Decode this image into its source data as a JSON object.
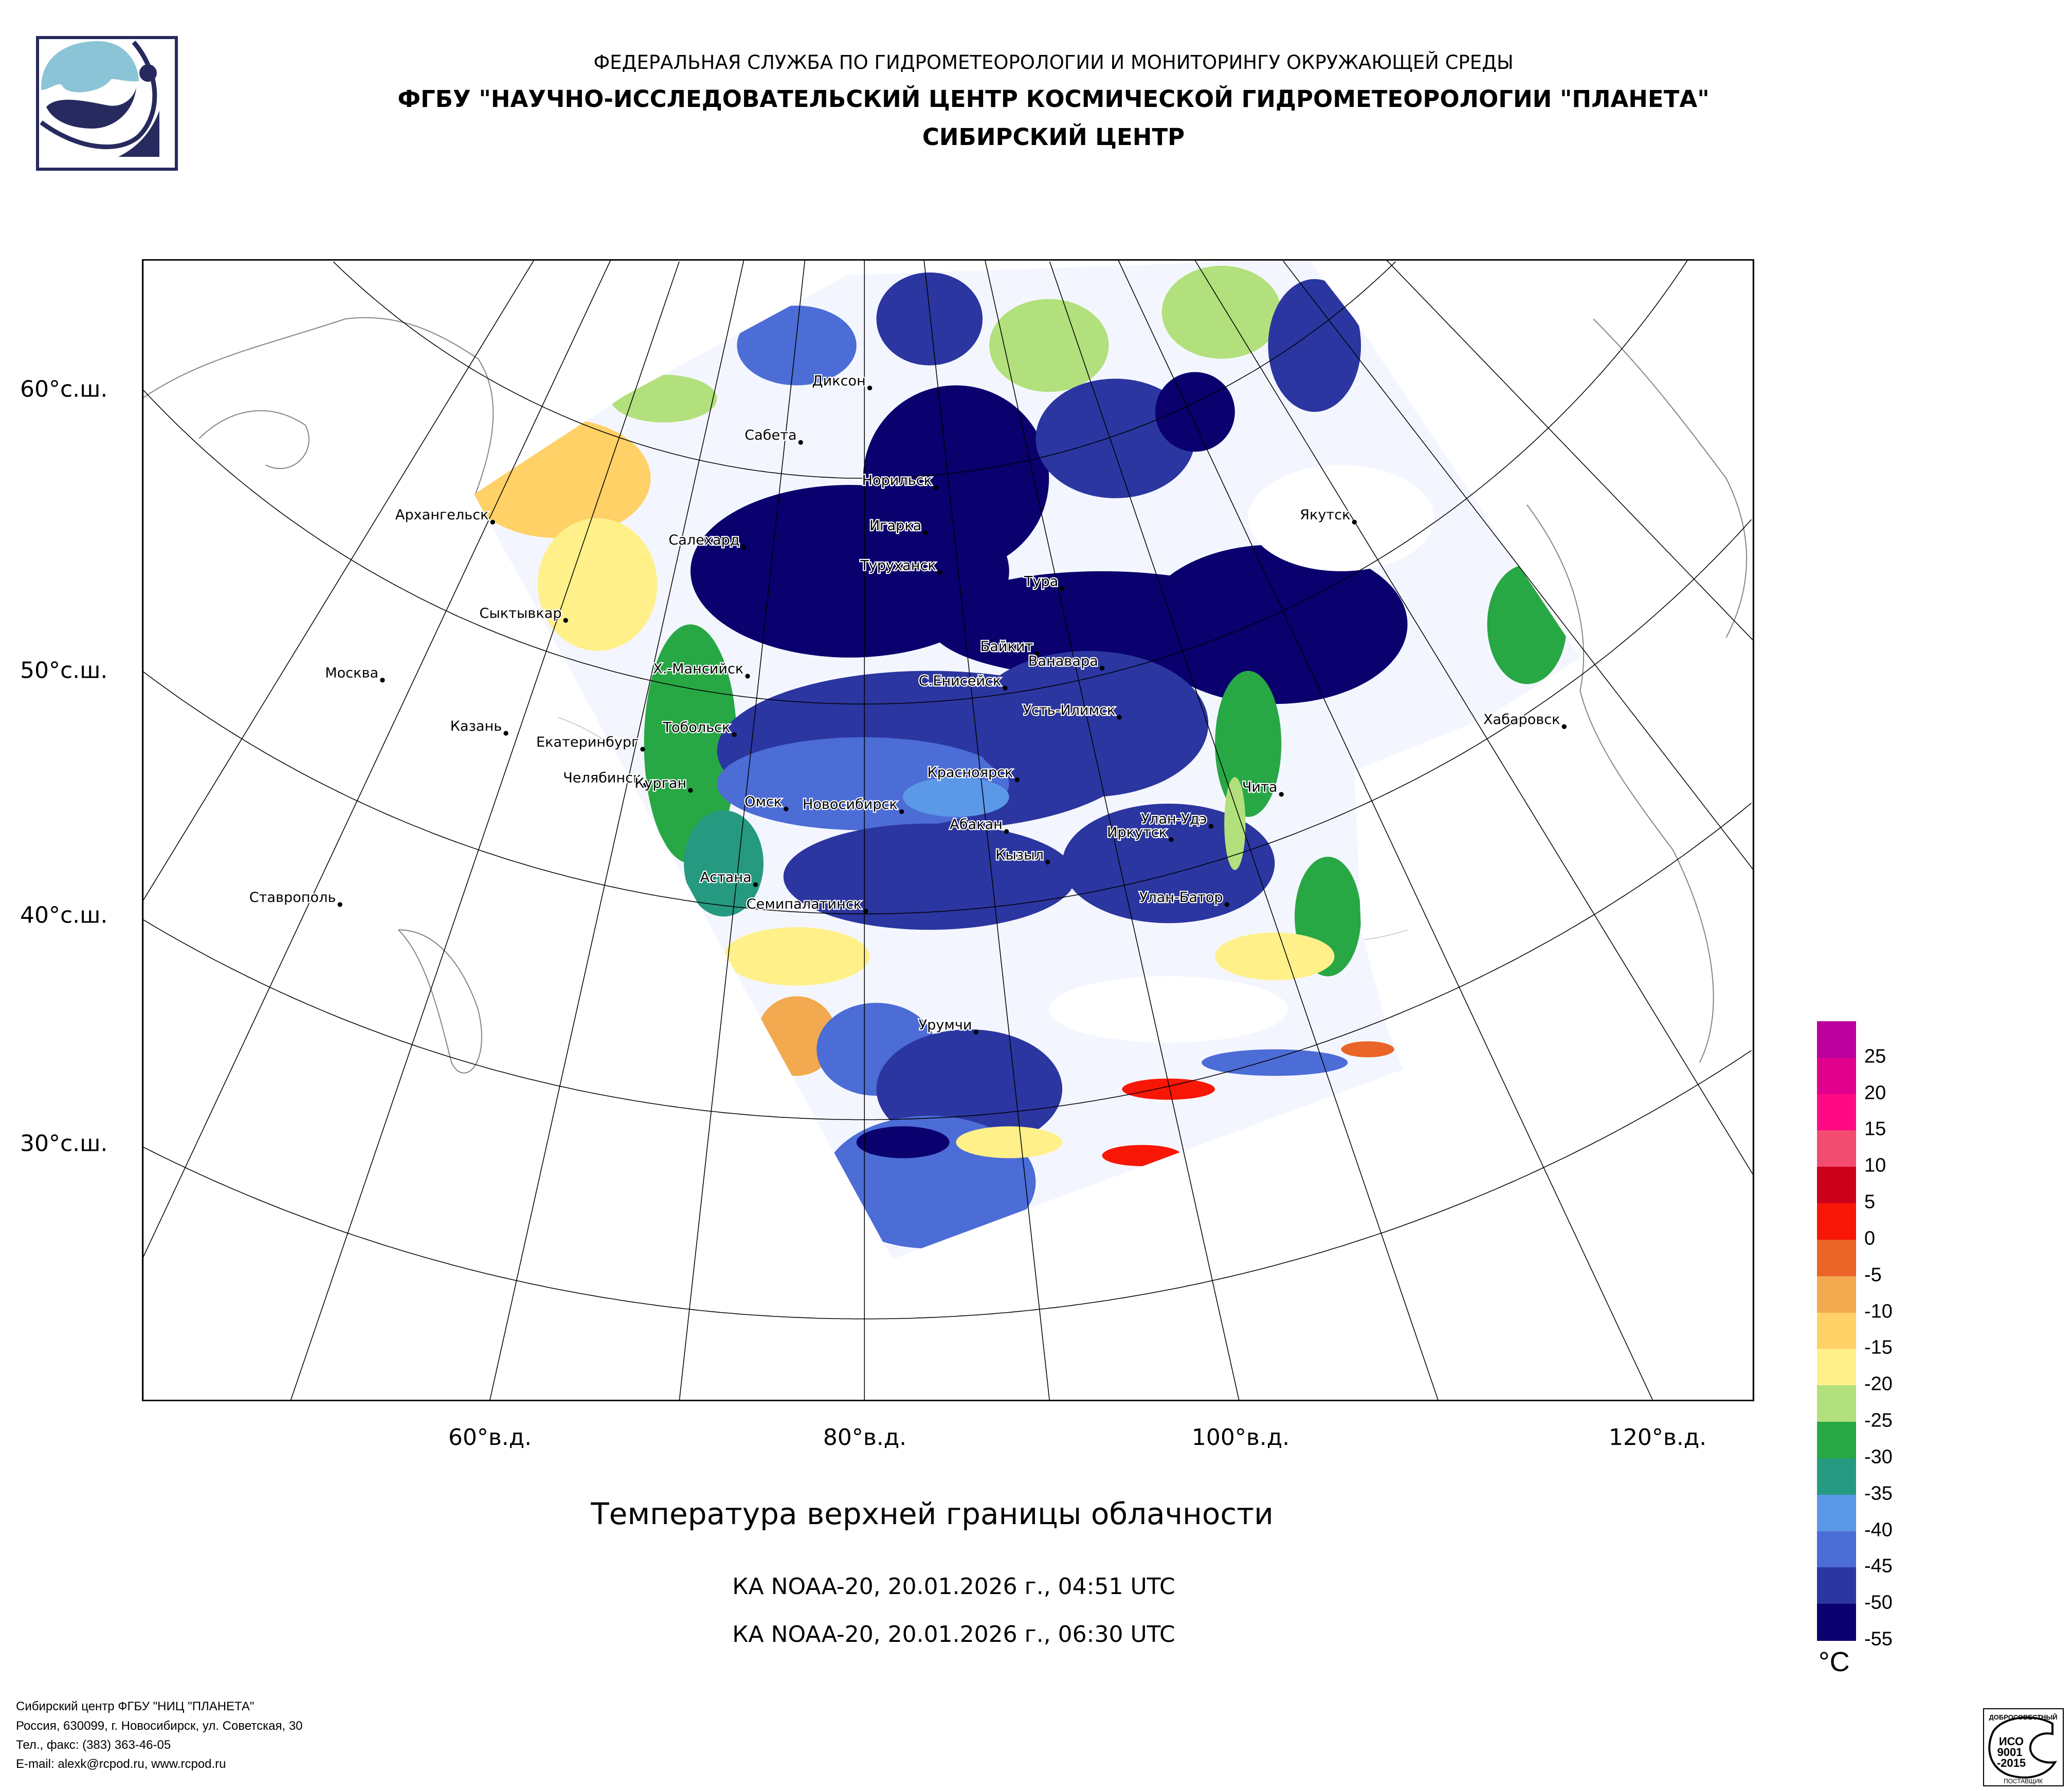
{
  "header": {
    "line1": "ФЕДЕРАЛЬНАЯ СЛУЖБА ПО ГИДРОМЕТЕОРОЛОГИИ И МОНИТОРИНГУ ОКРУЖАЮЩЕЙ СРЕДЫ",
    "line2": "ФГБУ \"НАУЧНО-ИССЛЕДОВАТЕЛЬСКИЙ ЦЕНТР КОСМИЧЕСКОЙ ГИДРОМЕТЕОРОЛОГИИ \"ПЛАНЕТА\"",
    "line3": "СИБИРСКИЙ ЦЕНТР"
  },
  "map": {
    "lat_labels": [
      "60°с.ш.",
      "50°с.ш.",
      "40°с.ш.",
      "30°с.ш."
    ],
    "lon_labels": [
      "60°в.д.",
      "80°в.д.",
      "100°в.д.",
      "120°в.д."
    ],
    "cities": [
      "Диксон",
      "Сабета",
      "Норильск",
      "Архангельск",
      "Игарка",
      "Салехард",
      "Туруханск",
      "Якутск",
      "Тура",
      "Сыктывкар",
      "Байкит",
      "Ванавара",
      "Х.-Мансийск",
      "Москва",
      "С.Енисейск",
      "Усть-Илимск",
      "Хабаровск",
      "Казань",
      "Тобольск",
      "Екатеринбург",
      "Челябинск",
      "Курган",
      "Красноярск",
      "Чита",
      "Омск",
      "Новосибирск",
      "Абакан",
      "Улан-Удэ",
      "Иркутск",
      "Кызыл",
      "Ставрополь",
      "Астана",
      "Семипалатинск",
      "Улан-Батор",
      "Урумчи"
    ]
  },
  "title": "Температура верхней границы облачности",
  "passes": [
    "КА NOAA-20, 20.01.2026 г., 04:51 UTC",
    "КА NOAA-20, 20.01.2026 г., 06:30 UTC"
  ],
  "legend": {
    "unit": "°C",
    "labels": [
      "25",
      "20",
      "15",
      "10",
      "5",
      "0",
      "-5",
      "-10",
      "-15",
      "-20",
      "-25",
      "-30",
      "-35",
      "-40",
      "-45",
      "-50",
      "-55"
    ],
    "colors": [
      "#bb009e",
      "#e0008c",
      "#ff0a82",
      "#f24c72",
      "#cc001a",
      "#f81607",
      "#e96426",
      "#f2a950",
      "#ffd166",
      "#fff08a",
      "#b2e07c",
      "#28a745",
      "#269a80",
      "#5b98e8",
      "#4c6cd6",
      "#2b36a0",
      "#0a006e"
    ]
  },
  "footer": {
    "line1": "Сибирский центр ФГБУ \"НИЦ \"ПЛАНЕТА\"",
    "line2": "Россия, 630099, г. Новосибирск, ул. Советская, 30",
    "line3": "Тел., факс: (383) 363-46-05",
    "line4": "E-mail: alexk@rcpod.ru, www.rcpod.ru"
  },
  "iso_badge": {
    "top": "ДОБРОСОВЕСТНЫЙ",
    "middle": "ИСО 9001 -2015",
    "bottom": "ПОСТАВЩИК"
  }
}
